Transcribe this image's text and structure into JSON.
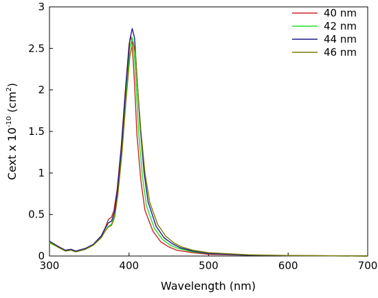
{
  "chart_data": {
    "type": "line",
    "title": "",
    "xlabel": "Wavelength (nm)",
    "ylabel": {
      "base": "Cext x 10",
      "exp": "-10",
      "unit_open": " (cm",
      "unit_exp": "2",
      "unit_close": ")"
    },
    "xlim": [
      300,
      700
    ],
    "ylim": [
      0,
      3
    ],
    "xticks": [
      300,
      400,
      500,
      600,
      700
    ],
    "yticks": [
      0,
      0.5,
      1,
      1.5,
      2,
      2.5,
      3
    ],
    "ytick_labels": [
      "0",
      "0.5",
      "1",
      "1.5",
      "2",
      "2.5",
      "3"
    ],
    "grid": false,
    "legend_position": "top-right",
    "series": [
      {
        "name": "40 nm",
        "color": "#cc2222",
        "points": [
          [
            300,
            0.17
          ],
          [
            310,
            0.12
          ],
          [
            320,
            0.07
          ],
          [
            327,
            0.08
          ],
          [
            333,
            0.06
          ],
          [
            345,
            0.09
          ],
          [
            355,
            0.14
          ],
          [
            365,
            0.24
          ],
          [
            370,
            0.34
          ],
          [
            374,
            0.44
          ],
          [
            378,
            0.47
          ],
          [
            381,
            0.55
          ],
          [
            385,
            0.8
          ],
          [
            390,
            1.3
          ],
          [
            395,
            1.95
          ],
          [
            400,
            2.55
          ],
          [
            402,
            2.65
          ],
          [
            404,
            2.55
          ],
          [
            407,
            2.05
          ],
          [
            410,
            1.45
          ],
          [
            415,
            0.9
          ],
          [
            420,
            0.55
          ],
          [
            430,
            0.3
          ],
          [
            440,
            0.17
          ],
          [
            450,
            0.11
          ],
          [
            460,
            0.07
          ],
          [
            480,
            0.04
          ],
          [
            500,
            0.02
          ],
          [
            550,
            0.01
          ],
          [
            600,
            0.005
          ],
          [
            700,
            0.0
          ]
        ]
      },
      {
        "name": "42 nm",
        "color": "#22dd22",
        "points": [
          [
            300,
            0.16
          ],
          [
            310,
            0.11
          ],
          [
            320,
            0.06
          ],
          [
            327,
            0.07
          ],
          [
            333,
            0.05
          ],
          [
            345,
            0.08
          ],
          [
            355,
            0.13
          ],
          [
            365,
            0.22
          ],
          [
            370,
            0.3
          ],
          [
            374,
            0.36
          ],
          [
            378,
            0.38
          ],
          [
            382,
            0.5
          ],
          [
            386,
            0.8
          ],
          [
            391,
            1.3
          ],
          [
            396,
            1.95
          ],
          [
            401,
            2.5
          ],
          [
            404,
            2.63
          ],
          [
            406,
            2.52
          ],
          [
            409,
            2.05
          ],
          [
            412,
            1.5
          ],
          [
            417,
            0.95
          ],
          [
            422,
            0.6
          ],
          [
            432,
            0.33
          ],
          [
            442,
            0.2
          ],
          [
            452,
            0.13
          ],
          [
            462,
            0.09
          ],
          [
            480,
            0.05
          ],
          [
            500,
            0.03
          ],
          [
            550,
            0.01
          ],
          [
            600,
            0.005
          ],
          [
            700,
            0.0
          ]
        ]
      },
      {
        "name": "44 nm",
        "color": "#1c1c8c",
        "points": [
          [
            300,
            0.18
          ],
          [
            310,
            0.12
          ],
          [
            320,
            0.07
          ],
          [
            327,
            0.08
          ],
          [
            333,
            0.06
          ],
          [
            345,
            0.09
          ],
          [
            355,
            0.14
          ],
          [
            365,
            0.24
          ],
          [
            370,
            0.33
          ],
          [
            374,
            0.4
          ],
          [
            378,
            0.42
          ],
          [
            382,
            0.54
          ],
          [
            386,
            0.84
          ],
          [
            391,
            1.38
          ],
          [
            396,
            2.05
          ],
          [
            401,
            2.6
          ],
          [
            404,
            2.74
          ],
          [
            407,
            2.62
          ],
          [
            410,
            2.15
          ],
          [
            414,
            1.55
          ],
          [
            419,
            1.0
          ],
          [
            424,
            0.65
          ],
          [
            434,
            0.36
          ],
          [
            444,
            0.22
          ],
          [
            454,
            0.15
          ],
          [
            464,
            0.1
          ],
          [
            480,
            0.06
          ],
          [
            500,
            0.03
          ],
          [
            550,
            0.01
          ],
          [
            600,
            0.005
          ],
          [
            700,
            0.0
          ]
        ]
      },
      {
        "name": "46 nm",
        "color": "#7a7a00",
        "points": [
          [
            300,
            0.17
          ],
          [
            310,
            0.11
          ],
          [
            320,
            0.06
          ],
          [
            327,
            0.07
          ],
          [
            333,
            0.05
          ],
          [
            345,
            0.08
          ],
          [
            355,
            0.13
          ],
          [
            365,
            0.22
          ],
          [
            370,
            0.3
          ],
          [
            374,
            0.35
          ],
          [
            378,
            0.37
          ],
          [
            382,
            0.47
          ],
          [
            386,
            0.74
          ],
          [
            391,
            1.22
          ],
          [
            396,
            1.85
          ],
          [
            401,
            2.4
          ],
          [
            405,
            2.58
          ],
          [
            408,
            2.45
          ],
          [
            411,
            2.0
          ],
          [
            415,
            1.5
          ],
          [
            420,
            1.0
          ],
          [
            426,
            0.65
          ],
          [
            436,
            0.38
          ],
          [
            446,
            0.24
          ],
          [
            456,
            0.16
          ],
          [
            466,
            0.11
          ],
          [
            480,
            0.07
          ],
          [
            500,
            0.04
          ],
          [
            550,
            0.015
          ],
          [
            600,
            0.007
          ],
          [
            700,
            0.0
          ]
        ]
      }
    ]
  }
}
